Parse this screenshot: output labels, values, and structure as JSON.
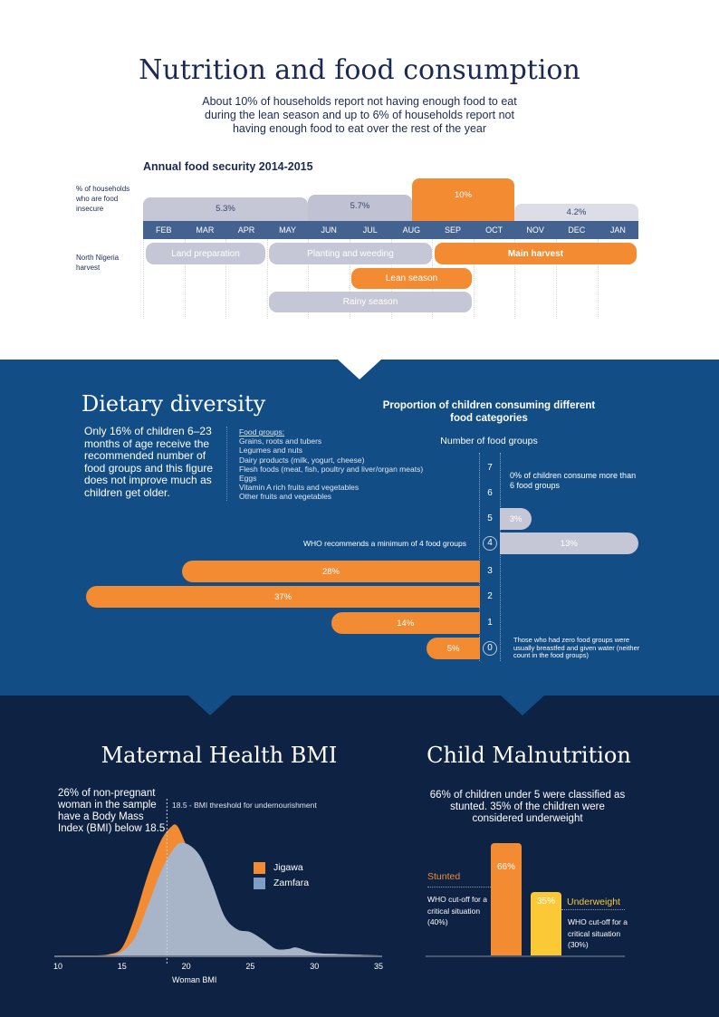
{
  "header": {
    "title": "Nutrition and food consumption",
    "subtitle": "About 10% of households report not having enough food to eat during the lean season and up to 6% of households report not having enough food to eat over the rest of the year"
  },
  "colors": {
    "orange": "#f38b32",
    "gray": "#c6c7d6",
    "month_bar": "#44628f",
    "mid_bg": "#124d86",
    "bottom_bg": "#0e2244",
    "yellow": "#fcc936",
    "zamfara": "#7f9ec4",
    "zamfara_light": "#b5bccb"
  },
  "chart_data": [
    {
      "type": "table",
      "title": "Annual food security 2014-2015",
      "row_label_insecure": "% of households who are food insecure",
      "row_label_harvest": "North Nigeria harvest",
      "months": [
        "FEB",
        "MAR",
        "APR",
        "MAY",
        "JUN",
        "JUL",
        "AUG",
        "SEP",
        "OCT",
        "NOV",
        "DEC",
        "JAN"
      ],
      "insecurity_periods": [
        {
          "label": "5.3%",
          "value": 5.3,
          "months": "FEB-MAY"
        },
        {
          "label": "5.7%",
          "value": 5.7,
          "months": "JUN-AUG"
        },
        {
          "label": "10%",
          "value": 10,
          "months": "SEP-OCT"
        },
        {
          "label": "4.2%",
          "value": 4.2,
          "months": "NOV-JAN"
        }
      ],
      "seasons": [
        {
          "label": "Land preparation"
        },
        {
          "label": "Planting and weeding"
        },
        {
          "label": "Main harvest"
        },
        {
          "label": "Lean season"
        },
        {
          "label": "Rainy season"
        }
      ]
    },
    {
      "type": "bar",
      "title": "Proportion of children consuming different food categories",
      "ylabel": "Number of food groups",
      "categories": [
        "7",
        "6",
        "5",
        "4",
        "3",
        "2",
        "1",
        "0"
      ],
      "values": [
        0,
        0,
        3,
        13,
        28,
        37,
        14,
        5
      ],
      "labels": [
        "",
        "",
        "3%",
        "13%",
        "28%",
        "37%",
        "14%",
        "5%"
      ],
      "annotations": {
        "above6": "0% of children consume more than 6 food groups",
        "who": "WHO recommends a minimum of 4 food groups",
        "zero": "Those who had zero food groups were usually breastfed and given water (neither count in the food groups)"
      }
    },
    {
      "type": "area",
      "xlabel": "Woman BMI",
      "xlim": [
        10,
        35
      ],
      "xticks": [
        "10",
        "15",
        "20",
        "25",
        "30",
        "35"
      ],
      "threshold": {
        "x": 18.5,
        "label": "18.5 - BMI threshold for undernourishment"
      },
      "legend": "right",
      "series": [
        {
          "name": "Jigawa",
          "x": [
            13,
            14,
            15,
            16,
            17,
            18,
            18.8,
            19.3,
            20,
            21,
            22,
            23,
            24,
            25,
            26,
            27,
            28,
            30,
            33
          ],
          "y": [
            0,
            0.01,
            0.06,
            0.3,
            0.62,
            0.88,
            0.99,
            1.0,
            0.85,
            0.6,
            0.36,
            0.2,
            0.12,
            0.08,
            0.05,
            0.03,
            0.02,
            0.01,
            0
          ]
        },
        {
          "name": "Zamfara",
          "x": [
            14,
            15,
            16,
            17,
            18,
            19,
            19.8,
            21,
            22,
            23,
            24,
            25,
            26,
            27,
            28,
            28.6,
            30,
            32,
            35
          ],
          "y": [
            0,
            0.03,
            0.14,
            0.38,
            0.64,
            0.82,
            0.87,
            0.78,
            0.56,
            0.3,
            0.2,
            0.18,
            0.12,
            0.05,
            0.05,
            0.06,
            0.02,
            0.01,
            0
          ]
        }
      ]
    },
    {
      "type": "bar",
      "categories": [
        "Stunted",
        "Underweight"
      ],
      "values": [
        66,
        35
      ],
      "labels": [
        "66%",
        "35%"
      ],
      "cutoffs": [
        {
          "value": 40,
          "label": "WHO cut-off for a critical situation (40%)"
        },
        {
          "value": 30,
          "label": "WHO cut-off for a critical situation (30%)"
        }
      ]
    }
  ],
  "dietary": {
    "title": "Dietary diversity",
    "text": "Only 16% of children 6–23 months of age receive the recommended number of food groups and this figure does not improve much as children get older.",
    "food_groups_title": "Food groups:",
    "food_groups": [
      "Grains, roots and tubers",
      "Legumes and nuts",
      "Dairy products (milk, yogurt, cheese)",
      "Flesh foods (meat, fish, poultry and liver/organ meats)",
      "Eggs",
      "Vitamin A rich fruits and vegetables",
      "Other fruits and vegetables"
    ]
  },
  "bmi": {
    "title": "Maternal Health BMI",
    "text": "26% of non-pregnant woman in the sample have a Body Mass Index (BMI) below 18.5"
  },
  "child": {
    "title": "Child Malnutrition",
    "text": "66% of children under 5 were classified as stunted. 35% of the children were considered underweight"
  }
}
